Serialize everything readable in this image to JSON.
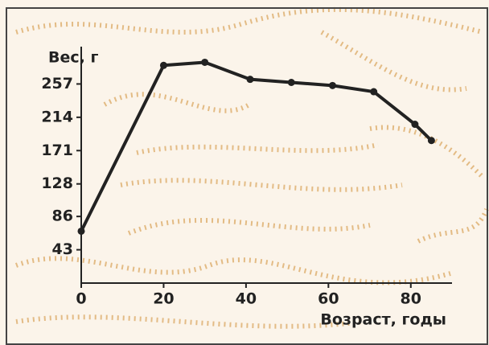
{
  "chart_data": {
    "type": "line",
    "y_label": "Вес, г",
    "x_label": "Возраст, годы",
    "x": [
      0,
      20,
      30,
      41,
      51,
      61,
      71,
      81,
      85
    ],
    "series": [
      {
        "color": "#222222",
        "values": [
          67,
          281,
          285,
          263,
          259,
          255,
          247,
          205,
          184
        ]
      }
    ],
    "xlim": [
      0,
      90
    ],
    "xticks": [
      0,
      20,
      40,
      60,
      80
    ],
    "ylim": [
      0,
      300
    ],
    "yticks": [
      43,
      86,
      128,
      171,
      214,
      257
    ]
  }
}
